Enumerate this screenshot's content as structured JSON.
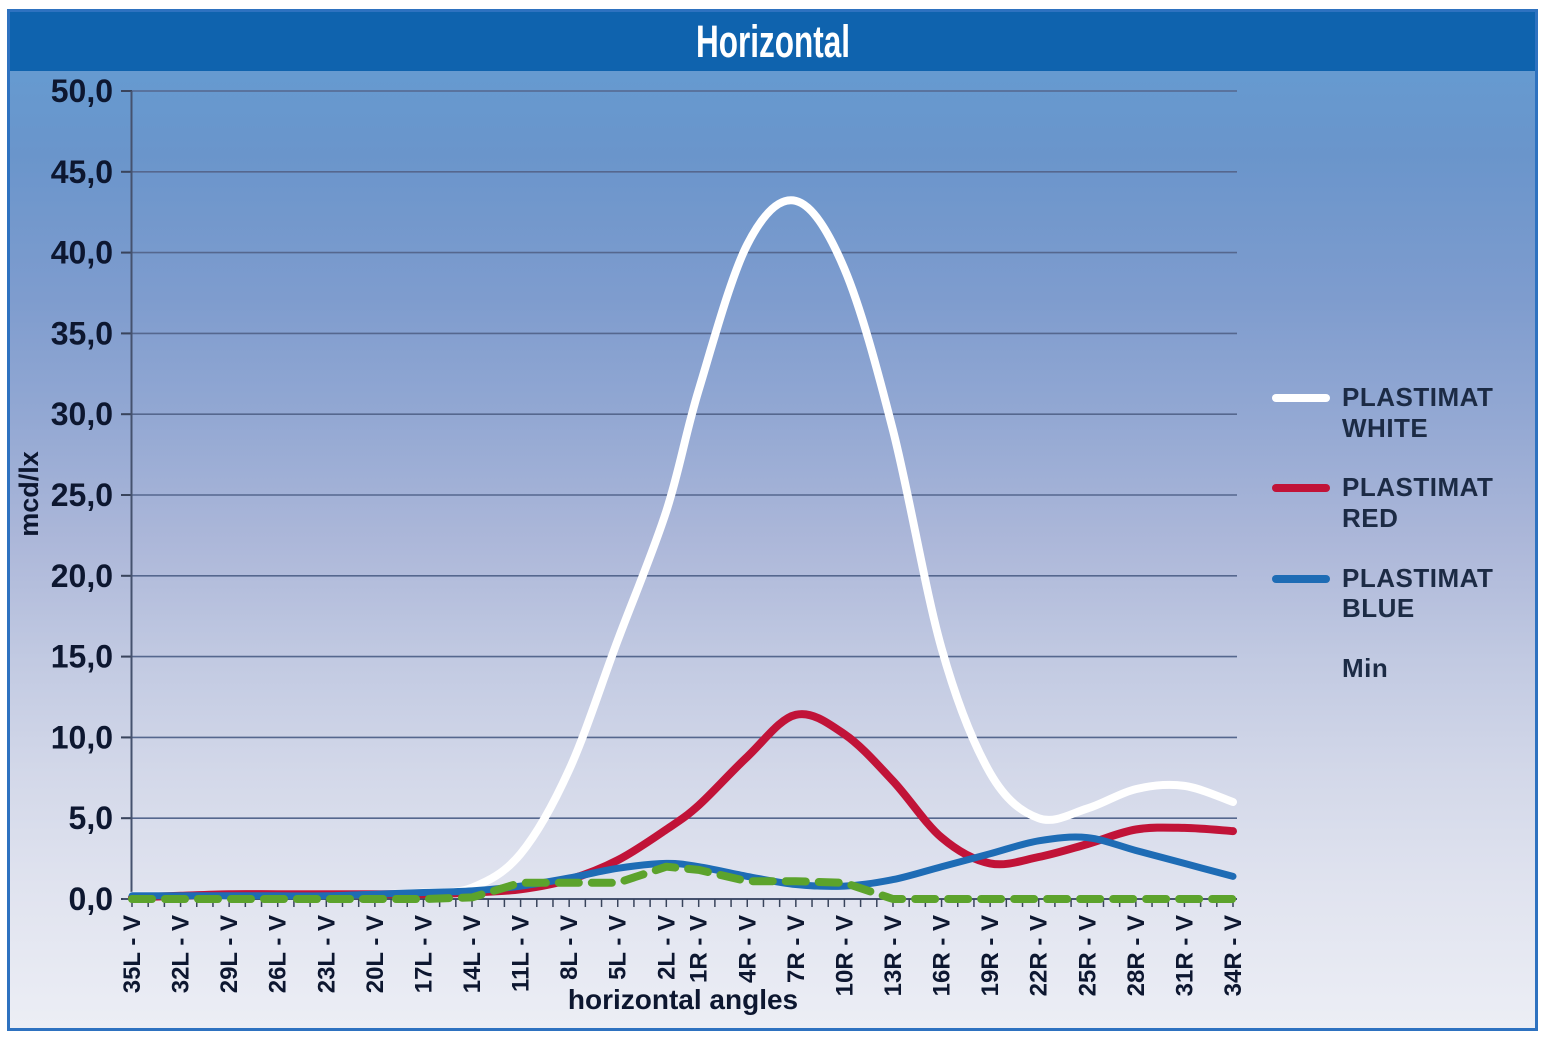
{
  "header": {
    "title": "Horizontal"
  },
  "chart_data": {
    "type": "line",
    "title": "Horizontal",
    "xlabel": "horizontal angles",
    "ylabel": "mcd/lx",
    "ylim": [
      0,
      50
    ],
    "ytick_step": 5,
    "ytick_labels": [
      "0,0",
      "5,0",
      "10,0",
      "15,0",
      "20,0",
      "25,0",
      "30,0",
      "35,0",
      "40,0",
      "45,0",
      "50,0"
    ],
    "grid": true,
    "legend_position": "right",
    "categories": [
      "35L - V",
      "32L - V",
      "29L - V",
      "26L - V",
      "23L - V",
      "20L - V",
      "17L - V",
      "14L - V",
      "11L - V",
      "8L - V",
      "5L - V",
      "2L - V",
      "1R - V",
      "4R - V",
      "7R - V",
      "10R - V",
      "13R - V",
      "16R - V",
      "19R - V",
      "22R - V",
      "25R - V",
      "28R - V",
      "31R - V",
      "34R - V"
    ],
    "category_axis_units": [
      0,
      3,
      6,
      9,
      12,
      15,
      18,
      21,
      24,
      27,
      30,
      33,
      35,
      38,
      41,
      44,
      47,
      50,
      53,
      56,
      59,
      62,
      65,
      68
    ],
    "axis_units_total": 68,
    "minor_tick_every_unit": true,
    "series": [
      {
        "name": "PLASTIMAT WHITE",
        "color": "#ffffff",
        "line_style": "solid",
        "smooth": true,
        "values": [
          0.2,
          0.2,
          0.2,
          0.3,
          0.3,
          0.3,
          0.4,
          0.7,
          2.8,
          8.0,
          16.0,
          24.0,
          31.5,
          40.5,
          43.2,
          39.0,
          29.0,
          15.5,
          7.8,
          5.0,
          5.6,
          6.8,
          7.0,
          6.0
        ]
      },
      {
        "name": "PLASTIMAT RED",
        "color": "#c11338",
        "line_style": "solid",
        "smooth": true,
        "values": [
          0.1,
          0.2,
          0.3,
          0.3,
          0.3,
          0.3,
          0.3,
          0.4,
          0.6,
          1.2,
          2.4,
          4.3,
          5.8,
          8.8,
          11.4,
          10.2,
          7.3,
          3.8,
          2.2,
          2.6,
          3.4,
          4.3,
          4.4,
          4.2
        ]
      },
      {
        "name": "PLASTIMAT BLUE",
        "color": "#1e6cb5",
        "line_style": "solid",
        "smooth": true,
        "values": [
          0.2,
          0.2,
          0.2,
          0.2,
          0.2,
          0.3,
          0.4,
          0.5,
          0.8,
          1.3,
          1.9,
          2.2,
          2.0,
          1.4,
          0.9,
          0.8,
          1.2,
          2.0,
          2.8,
          3.6,
          3.8,
          3.0,
          2.2,
          1.4
        ]
      },
      {
        "name": "Min",
        "color": "#5ca32c",
        "line_style": "dashed",
        "smooth": false,
        "values": [
          0.0,
          0.0,
          0.0,
          0.0,
          0.0,
          0.0,
          0.0,
          0.1,
          1.0,
          1.0,
          1.0,
          2.0,
          1.8,
          1.1,
          1.1,
          1.0,
          0.0,
          0.0,
          0.0,
          0.0,
          0.0,
          0.0,
          0.0,
          0.0
        ]
      }
    ]
  },
  "colors": {
    "frame_border": "#2e72c0",
    "header_bg": "#0f63ae",
    "header_text": "#ffffff",
    "grid_line": "#55678e",
    "axis_line": "#45526e",
    "tick": "#39445c",
    "axis_text": "#0d1730",
    "legend_text": "#1c2b45",
    "bg_top": "#5e97d0",
    "bg_bottom": "#eceef5"
  }
}
